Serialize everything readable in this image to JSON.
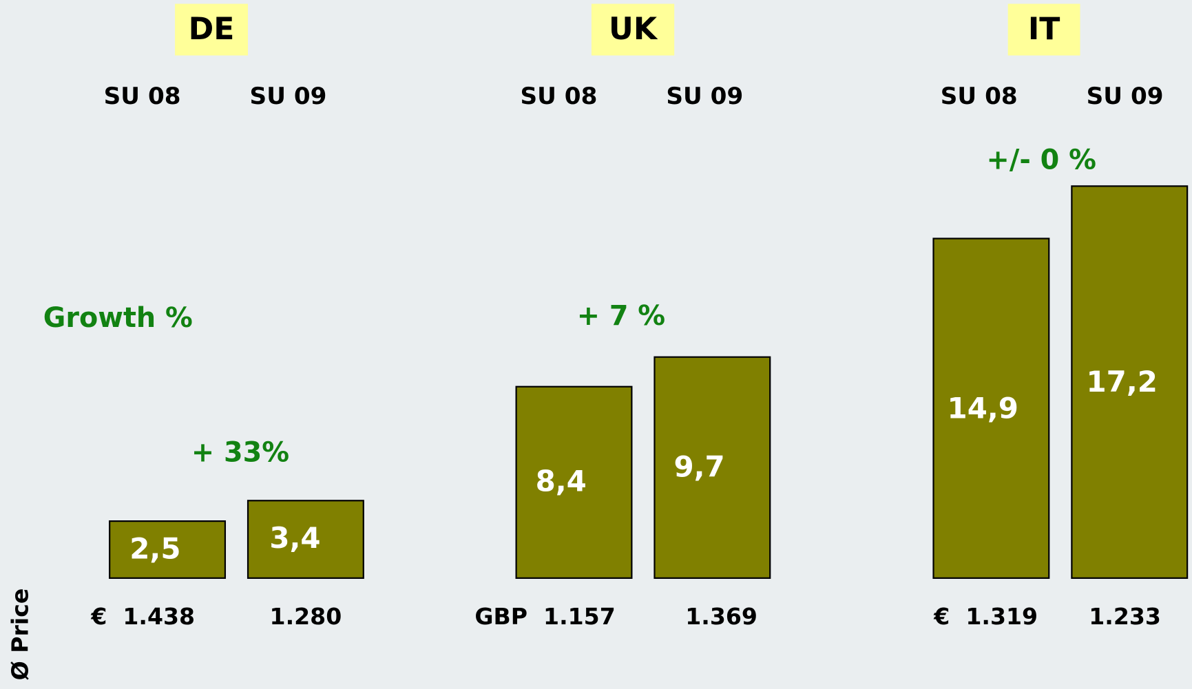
{
  "chart_data": {
    "type": "bar",
    "color": "#808000",
    "label_color": "#ffffff",
    "growth_color": "#128212",
    "annotation": "Growth %",
    "y_label": "Ø Price",
    "groups": [
      {
        "name": "DE",
        "categories": [
          "SU 08",
          "SU 09"
        ],
        "values": [
          2.5,
          3.4
        ],
        "value_labels": [
          "2,5",
          "3,4"
        ],
        "growth": "+ 33%",
        "prices": [
          "€  1.438",
          "1.280"
        ]
      },
      {
        "name": "UK",
        "categories": [
          "SU 08",
          "SU 09"
        ],
        "values": [
          8.4,
          9.7
        ],
        "value_labels": [
          "8,4",
          "9,7"
        ],
        "growth": "+ 7 %",
        "prices": [
          "GBP  1.157",
          "1.369"
        ]
      },
      {
        "name": "IT",
        "categories": [
          "SU 08",
          "SU 09"
        ],
        "values": [
          14.9,
          17.2
        ],
        "value_labels": [
          "14,9",
          "17,2"
        ],
        "growth": "+/- 0 %",
        "prices": [
          "€  1.319",
          "1.233"
        ]
      }
    ]
  }
}
